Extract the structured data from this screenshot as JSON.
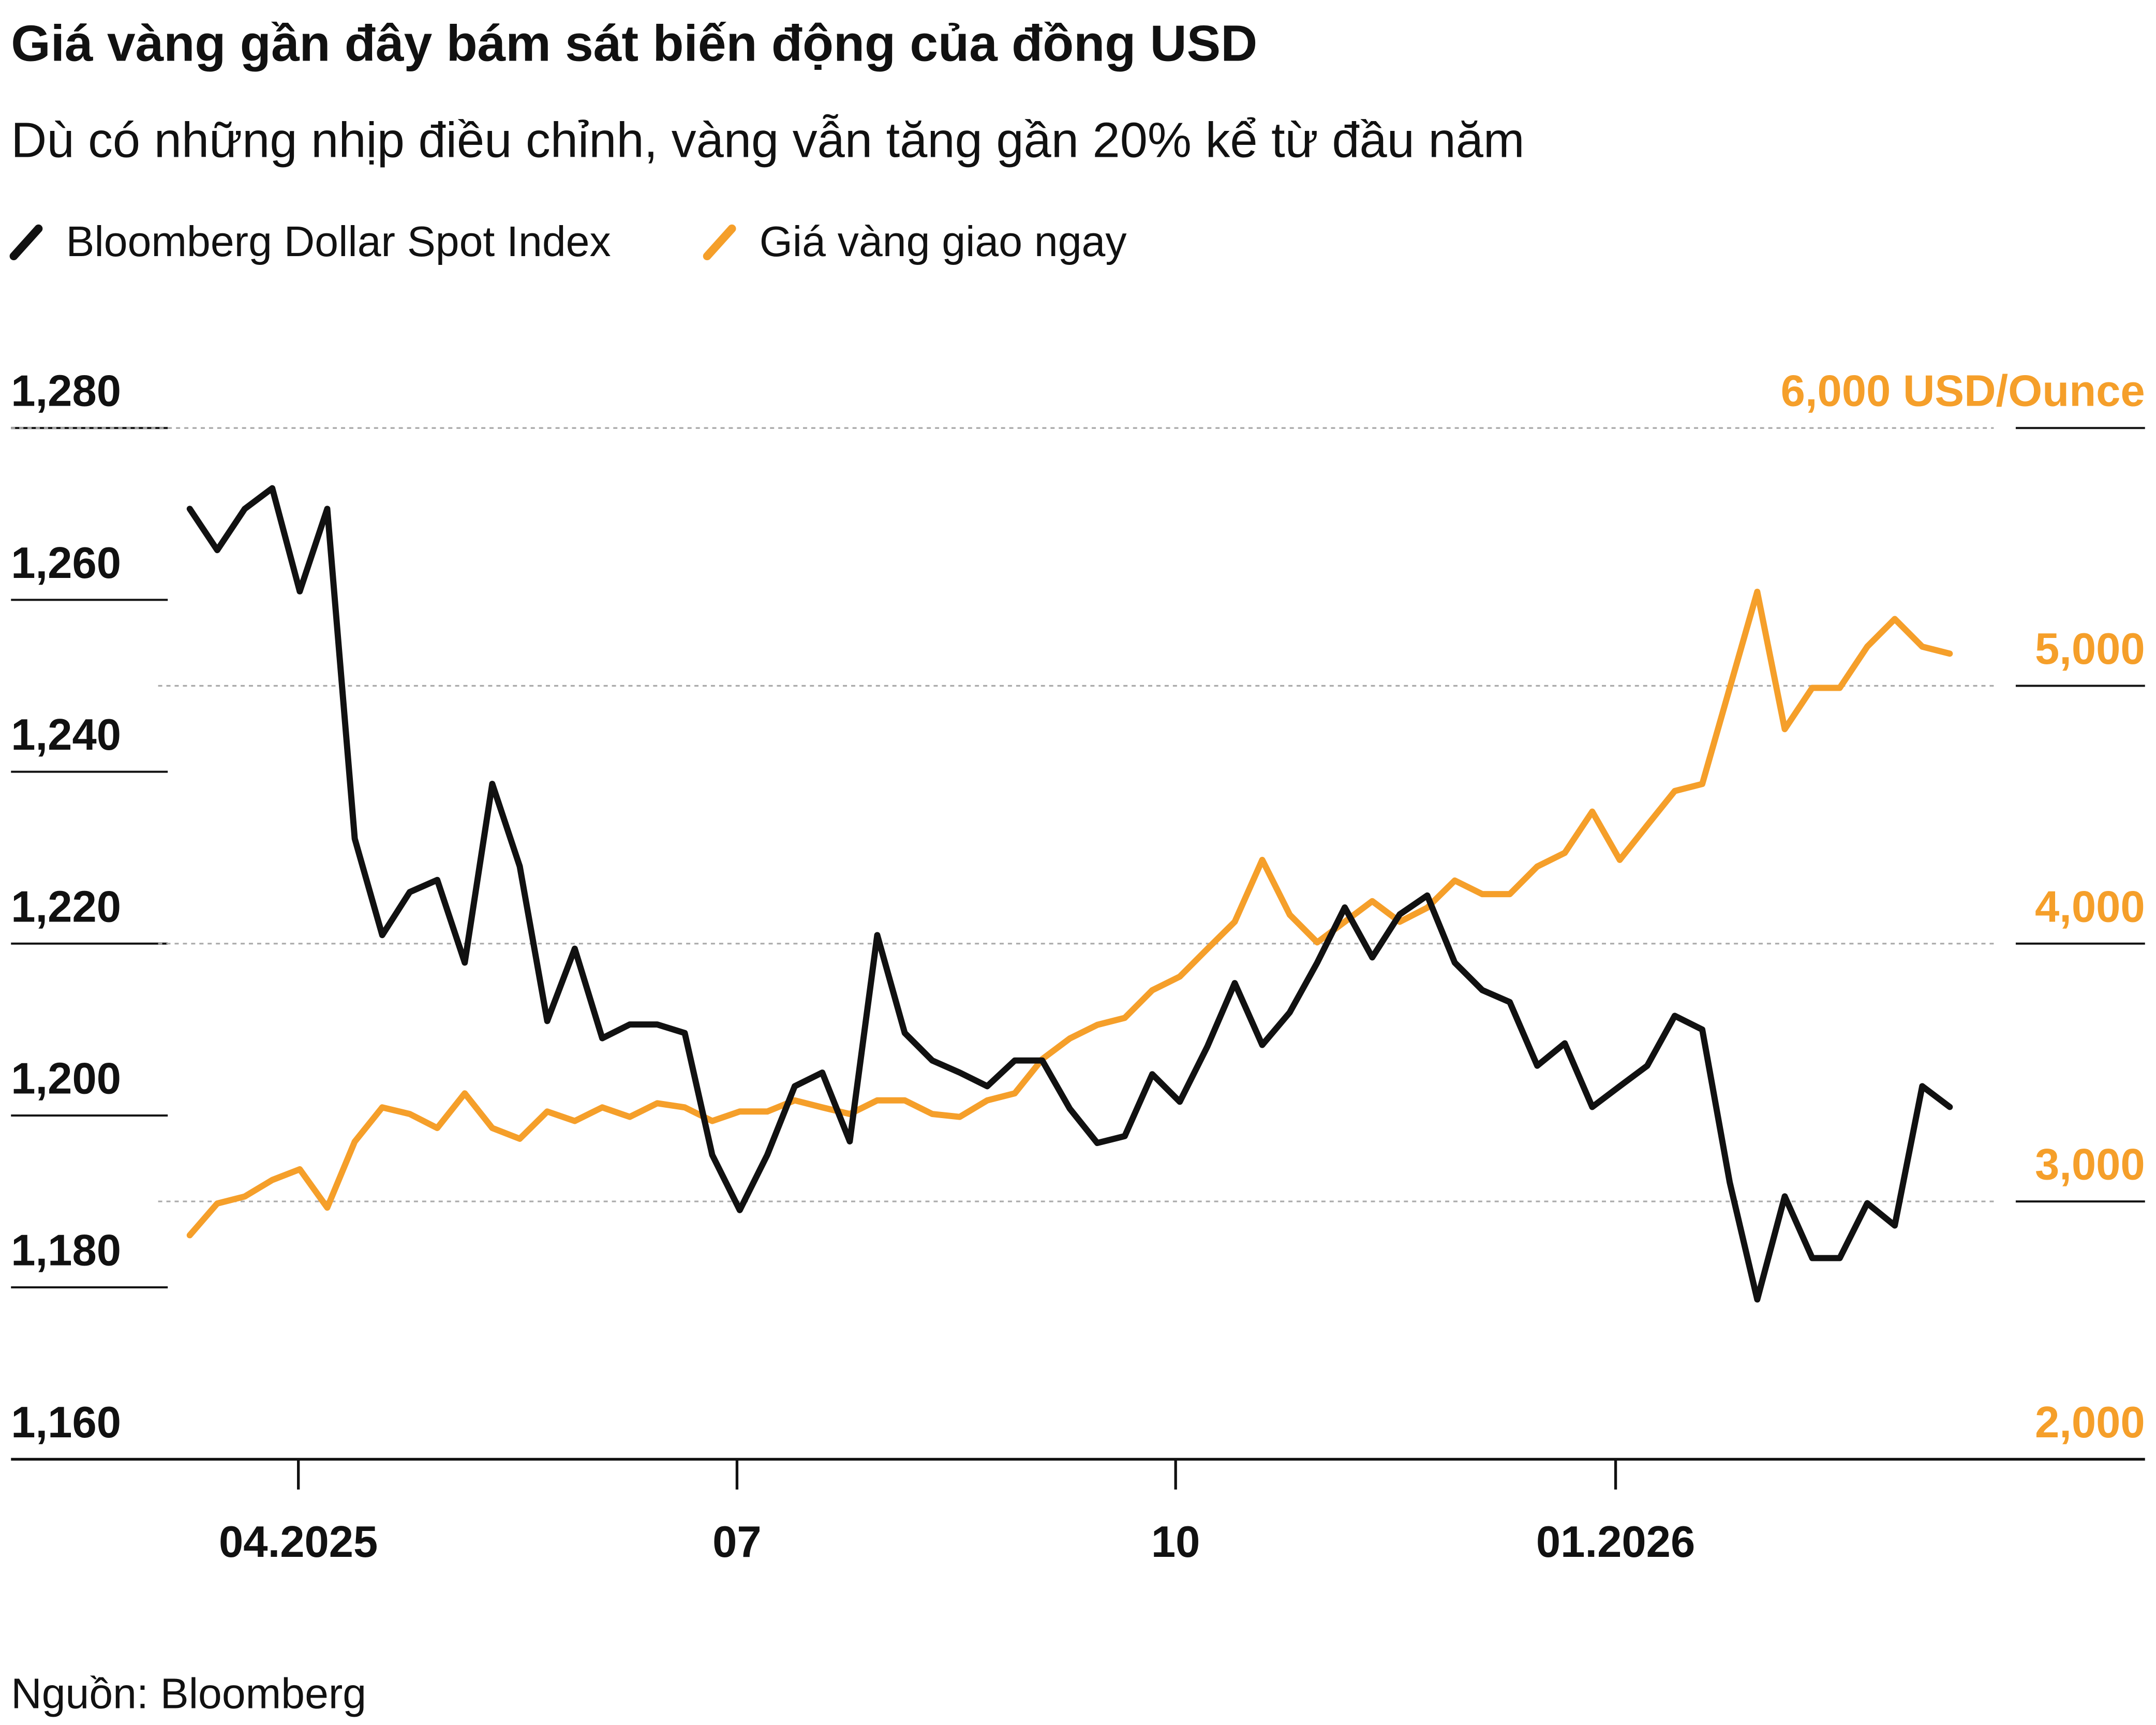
{
  "chart_data": {
    "type": "line",
    "title": "Giá vàng gần đây bám sát biến động của đồng USD",
    "subtitle": "Dù có những nhịp điều chỉnh, vàng vẫn tăng gần 20% kể từ đầu năm",
    "source": "Nguồn: Bloomberg",
    "xlim": [
      0,
      64
    ],
    "xticks": [
      {
        "value": 3.95,
        "label": "04.2025"
      },
      {
        "value": 19.9,
        "label": "07"
      },
      {
        "value": 35.85,
        "label": "10"
      },
      {
        "value": 51.85,
        "label": "01.2026"
      }
    ],
    "ylim": [
      1160,
      1280
    ],
    "yticks": [
      {
        "value": 1160,
        "label": "1,160"
      },
      {
        "value": 1180,
        "label": "1,180"
      },
      {
        "value": 1200,
        "label": "1,200"
      },
      {
        "value": 1220,
        "label": "1,220"
      },
      {
        "value": 1240,
        "label": "1,240"
      },
      {
        "value": 1260,
        "label": "1,260"
      },
      {
        "value": 1280,
        "label": "1,280"
      }
    ],
    "y2lim": [
      2000,
      6000
    ],
    "y2ticks": [
      {
        "value": 2000,
        "label": "2,000"
      },
      {
        "value": 3000,
        "label": "3,000"
      },
      {
        "value": 4000,
        "label": "4,000"
      },
      {
        "value": 5000,
        "label": "5,000"
      },
      {
        "value": 6000,
        "label": "6,000 USD/Ounce"
      }
    ],
    "grid": true,
    "series": [
      {
        "name": "Bloomberg Dollar Spot Index",
        "color": "#111111",
        "values": [
          1270.6,
          1265.8,
          1270.6,
          1273,
          1261,
          1270.6,
          1232.2,
          1221,
          1226,
          1227.4,
          1217.8,
          1238.6,
          1229,
          1211,
          1219.4,
          1209,
          1210.6,
          1210.6,
          1209.6,
          1195.4,
          1189,
          1195.4,
          1203.4,
          1205,
          1197,
          1221,
          1209.6,
          1206.4,
          1205,
          1203.4,
          1206.4,
          1206.4,
          1200.8,
          1196.8,
          1197.6,
          1204.8,
          1201.6,
          1208,
          1215.4,
          1208.2,
          1212,
          1217.8,
          1224.2,
          1218.4,
          1223.4,
          1225.6,
          1217.8,
          1214.6,
          1213.2,
          1205.8,
          1208.4,
          1201,
          1203.4,
          1205.8,
          1211.6,
          1210,
          1192.2,
          1178.6,
          1190.6,
          1183.4,
          1183.4,
          1189.8,
          1187.2,
          1203.4,
          1201
        ]
      },
      {
        "name": "Giá vàng giao ngay",
        "color": "#f59f2a",
        "axis": "y2",
        "values": [
          2869,
          2992,
          3019,
          3083,
          3125,
          2976,
          3232,
          3365,
          3339,
          3285,
          3419,
          3285,
          3243,
          3349,
          3312,
          3365,
          3328,
          3381,
          3365,
          3312,
          3349,
          3349,
          3392,
          3365,
          3339,
          3392,
          3392,
          3339,
          3328,
          3392,
          3419,
          3552,
          3632,
          3685,
          3712,
          3819,
          3872,
          3979,
          4085,
          4325,
          4112,
          4005,
          4085,
          4165,
          4085,
          4139,
          4245,
          4192,
          4192,
          4299,
          4352,
          4512,
          4325,
          4459,
          4592,
          4619,
          4992,
          5365,
          4832,
          4992,
          4992,
          5152,
          5259,
          5152,
          5125
        ]
      }
    ]
  }
}
